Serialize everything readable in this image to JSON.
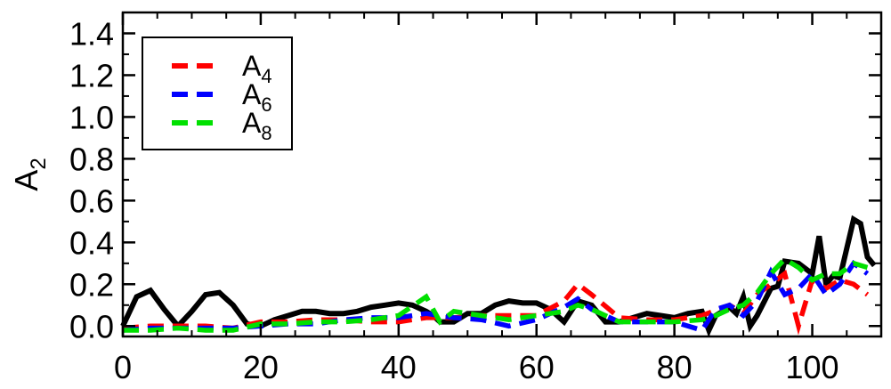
{
  "chart_data": {
    "type": "line",
    "xlabel": "",
    "ylabel": {
      "base": "A",
      "sub": "2"
    },
    "xlim": [
      0,
      110
    ],
    "ylim": [
      -0.05,
      1.5
    ],
    "x_ticks": [
      0,
      20,
      40,
      60,
      80,
      100
    ],
    "x_tick_labels": [
      "0",
      "20",
      "40",
      "60",
      "80",
      "100"
    ],
    "y_ticks": [
      0.0,
      0.2,
      0.4,
      0.6,
      0.8,
      1.0,
      1.2,
      1.4
    ],
    "y_tick_labels": [
      "0.0",
      "0.2",
      "0.4",
      "0.6",
      "0.8",
      "1.0",
      "1.2",
      "1.4"
    ],
    "grid": false,
    "legend_position": "top-left",
    "series": [
      {
        "color": "#000000",
        "dash": "solid",
        "x": [
          0,
          2,
          4,
          6,
          8,
          10,
          12,
          14,
          16,
          18,
          20,
          22,
          24,
          26,
          28,
          30,
          32,
          34,
          36,
          38,
          40,
          42,
          44,
          45,
          46,
          48,
          50,
          52,
          54,
          56,
          58,
          60,
          62,
          64,
          66,
          68,
          70,
          72,
          74,
          76,
          78,
          80,
          82,
          84,
          85,
          86,
          88,
          89,
          90,
          91,
          92,
          94,
          95,
          96,
          98,
          100,
          101,
          102,
          103,
          104,
          106,
          107,
          108,
          109
        ],
        "y": [
          0.0,
          0.14,
          0.17,
          0.08,
          0.0,
          0.07,
          0.15,
          0.16,
          0.1,
          0.01,
          0.0,
          0.03,
          0.05,
          0.07,
          0.07,
          0.06,
          0.06,
          0.07,
          0.09,
          0.1,
          0.11,
          0.1,
          0.07,
          0.05,
          0.02,
          0.02,
          0.06,
          0.06,
          0.1,
          0.12,
          0.11,
          0.11,
          0.08,
          0.02,
          0.12,
          0.1,
          0.02,
          0.02,
          0.04,
          0.06,
          0.05,
          0.04,
          0.06,
          0.07,
          -0.02,
          0.05,
          0.09,
          0.06,
          0.14,
          0.0,
          0.05,
          0.18,
          0.19,
          0.31,
          0.3,
          0.25,
          0.43,
          0.2,
          0.24,
          0.23,
          0.51,
          0.49,
          0.33,
          0.29
        ]
      },
      {
        "name": {
          "base": "A",
          "sub": "4"
        },
        "color": "#ff0000",
        "dash": "dashed",
        "x": [
          0,
          4,
          8,
          12,
          16,
          20,
          24,
          28,
          32,
          36,
          40,
          44,
          48,
          52,
          56,
          60,
          64,
          66,
          68,
          72,
          76,
          80,
          84,
          88,
          90,
          92,
          94,
          96,
          98,
          100,
          102,
          104,
          106,
          108
        ],
        "y": [
          -0.01,
          0.0,
          0.0,
          0.0,
          -0.01,
          0.02,
          0.02,
          0.03,
          0.03,
          0.02,
          0.02,
          0.04,
          0.04,
          0.05,
          0.05,
          0.05,
          0.12,
          0.2,
          0.15,
          0.04,
          0.03,
          0.03,
          0.05,
          0.1,
          0.06,
          0.15,
          0.2,
          0.25,
          0.0,
          0.22,
          0.18,
          0.22,
          0.2,
          0.15
        ]
      },
      {
        "name": {
          "base": "A",
          "sub": "6"
        },
        "color": "#0000ff",
        "dash": "dashed",
        "x": [
          0,
          4,
          8,
          12,
          16,
          20,
          24,
          28,
          32,
          36,
          40,
          44,
          48,
          52,
          56,
          60,
          64,
          66,
          68,
          72,
          76,
          80,
          84,
          86,
          88,
          90,
          92,
          94,
          96,
          98,
          100,
          102,
          104,
          106,
          108
        ],
        "y": [
          -0.02,
          -0.01,
          -0.01,
          -0.01,
          -0.01,
          0.0,
          0.01,
          0.01,
          0.03,
          0.04,
          0.04,
          0.06,
          0.04,
          0.03,
          0.0,
          0.03,
          0.09,
          0.13,
          0.08,
          0.02,
          0.02,
          0.02,
          -0.02,
          0.08,
          0.1,
          0.05,
          0.12,
          0.26,
          0.15,
          0.18,
          0.25,
          0.15,
          0.2,
          0.3,
          0.25
        ]
      },
      {
        "name": {
          "base": "A",
          "sub": "8"
        },
        "color": "#00e000",
        "dash": "dashed",
        "x": [
          0,
          4,
          8,
          12,
          16,
          20,
          24,
          28,
          32,
          36,
          40,
          44,
          46,
          48,
          52,
          56,
          60,
          64,
          66,
          68,
          72,
          76,
          80,
          84,
          86,
          88,
          90,
          92,
          94,
          96,
          98,
          100,
          102,
          104,
          106,
          108
        ],
        "y": [
          -0.02,
          -0.02,
          -0.01,
          -0.02,
          -0.02,
          0.01,
          0.01,
          0.02,
          0.02,
          0.03,
          0.05,
          0.14,
          0.02,
          0.07,
          0.05,
          0.03,
          0.05,
          0.07,
          0.1,
          0.08,
          0.02,
          0.02,
          0.02,
          0.03,
          0.05,
          0.08,
          0.1,
          0.16,
          0.25,
          0.32,
          0.28,
          0.22,
          0.25,
          0.25,
          0.3,
          0.28
        ]
      }
    ]
  }
}
